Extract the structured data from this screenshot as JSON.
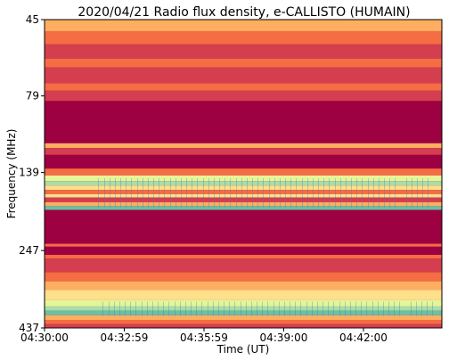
{
  "chart_data": {
    "type": "heatmap",
    "title": "2020/04/21  Radio flux density, e-CALLISTO (HUMAIN)",
    "xlabel": "Time (UT)",
    "ylabel": "Frequency (MHz)",
    "x_ticks": [
      "04:30:00",
      "04:32:59",
      "04:35:59",
      "04:39:00",
      "04:42:00"
    ],
    "y_ticks": [
      "45",
      "79",
      "139",
      "247",
      "437"
    ],
    "y_range_mhz": [
      45,
      437
    ],
    "y_scale": "log",
    "y_inverted": true,
    "x_range": [
      "04:30:00",
      "04:45:00"
    ],
    "colormap": "spectral",
    "colors": {
      "low": "#9e0142",
      "mid_low": "#d53e4f",
      "mid": "#f46d43",
      "warm": "#fdae61",
      "light": "#fee08b",
      "pale": "#e6f598",
      "green": "#abdda4",
      "teal": "#66c2a5",
      "blue": "#3288bd"
    },
    "bands": [
      {
        "f_lo": 45,
        "f_hi": 49,
        "level": "warm"
      },
      {
        "f_lo": 49,
        "f_hi": 54,
        "level": "mid"
      },
      {
        "f_lo": 54,
        "f_hi": 60,
        "level": "mid_low"
      },
      {
        "f_lo": 60,
        "f_hi": 64,
        "level": "mid"
      },
      {
        "f_lo": 64,
        "f_hi": 72,
        "level": "mid_low"
      },
      {
        "f_lo": 72,
        "f_hi": 76,
        "level": "mid"
      },
      {
        "f_lo": 76,
        "f_hi": 82,
        "level": "mid_low"
      },
      {
        "f_lo": 82,
        "f_hi": 112,
        "level": "low"
      },
      {
        "f_lo": 112,
        "f_hi": 116,
        "level": "warm"
      },
      {
        "f_lo": 116,
        "f_hi": 122,
        "level": "mid_low"
      },
      {
        "f_lo": 122,
        "f_hi": 135,
        "level": "low"
      },
      {
        "f_lo": 135,
        "f_hi": 142,
        "level": "mid"
      },
      {
        "f_lo": 142,
        "f_hi": 148,
        "level": "pale"
      },
      {
        "f_lo": 148,
        "f_hi": 153,
        "level": "green"
      },
      {
        "f_lo": 153,
        "f_hi": 158,
        "level": "light"
      },
      {
        "f_lo": 158,
        "f_hi": 163,
        "level": "mid"
      },
      {
        "f_lo": 163,
        "f_hi": 167,
        "level": "light"
      },
      {
        "f_lo": 167,
        "f_hi": 173,
        "level": "mid_low"
      },
      {
        "f_lo": 173,
        "f_hi": 178,
        "level": "warm"
      },
      {
        "f_lo": 178,
        "f_hi": 183,
        "level": "teal"
      },
      {
        "f_lo": 183,
        "f_hi": 200,
        "level": "low"
      },
      {
        "f_lo": 200,
        "f_hi": 235,
        "level": "low"
      },
      {
        "f_lo": 235,
        "f_hi": 240,
        "level": "mid"
      },
      {
        "f_lo": 240,
        "f_hi": 255,
        "level": "low"
      },
      {
        "f_lo": 255,
        "f_hi": 262,
        "level": "mid"
      },
      {
        "f_lo": 262,
        "f_hi": 290,
        "level": "mid_low"
      },
      {
        "f_lo": 290,
        "f_hi": 310,
        "level": "mid"
      },
      {
        "f_lo": 310,
        "f_hi": 330,
        "level": "warm"
      },
      {
        "f_lo": 330,
        "f_hi": 355,
        "level": "light"
      },
      {
        "f_lo": 355,
        "f_hi": 372,
        "level": "pale"
      },
      {
        "f_lo": 372,
        "f_hi": 385,
        "level": "green"
      },
      {
        "f_lo": 385,
        "f_hi": 398,
        "level": "teal"
      },
      {
        "f_lo": 398,
        "f_hi": 412,
        "level": "warm"
      },
      {
        "f_lo": 412,
        "f_hi": 425,
        "level": "mid"
      },
      {
        "f_lo": 425,
        "f_hi": 437,
        "level": "mid_low"
      }
    ]
  }
}
